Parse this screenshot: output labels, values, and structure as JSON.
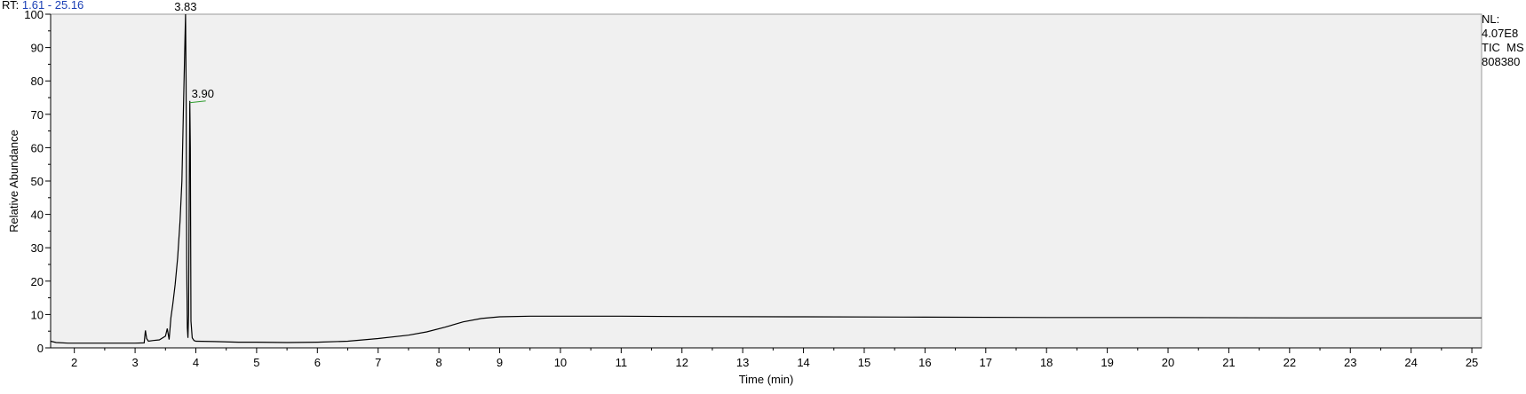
{
  "header": {
    "rt_label": "RT:",
    "rt_range": "1.61 - 25.16"
  },
  "info": {
    "nl_label": "NL:",
    "nl_value": "4.07E8",
    "scan_label": "TIC  MS",
    "file_id": "808380"
  },
  "colors": {
    "plot_background": "#f0f0f0",
    "trace": "#000000",
    "label_connector": "#2e9c2e",
    "rt_range_text": "#1a3fb5"
  },
  "chart_data": {
    "type": "line",
    "xlabel": "Time (min)",
    "ylabel": "Relative Abundance",
    "xlim": [
      1.61,
      25.16
    ],
    "ylim": [
      0,
      100
    ],
    "x_ticks": [
      2,
      3,
      4,
      5,
      6,
      7,
      8,
      9,
      10,
      11,
      12,
      13,
      14,
      15,
      16,
      17,
      18,
      19,
      20,
      21,
      22,
      23,
      24,
      25
    ],
    "y_ticks": [
      0,
      10,
      20,
      30,
      40,
      50,
      60,
      70,
      80,
      90,
      100
    ],
    "grid": false,
    "annotations": [
      {
        "x": 3.83,
        "y": 100,
        "text": "3.83"
      },
      {
        "x": 3.9,
        "y": 74,
        "text": "3.90"
      }
    ],
    "series": [
      {
        "x": [
          1.61,
          1.7,
          1.9,
          2.2,
          2.6,
          3.0,
          3.15,
          3.17,
          3.19,
          3.22,
          3.3,
          3.4,
          3.5,
          3.53,
          3.56,
          3.59,
          3.62,
          3.66,
          3.7,
          3.74,
          3.77,
          3.8,
          3.82,
          3.83,
          3.84,
          3.85,
          3.86,
          3.87,
          3.88,
          3.89,
          3.9,
          3.91,
          3.92,
          3.94,
          3.97,
          4.0,
          4.3,
          4.7,
          5.0,
          5.5,
          6.0,
          6.5,
          7.0,
          7.5,
          7.8,
          8.1,
          8.4,
          8.7,
          9.0,
          9.5,
          10.0,
          11.0,
          12.0,
          14.0,
          16.0,
          18.0,
          20.0,
          22.0,
          24.0,
          25.16
        ],
        "y": [
          2.0,
          1.6,
          1.4,
          1.4,
          1.4,
          1.4,
          1.5,
          5.2,
          2.8,
          2.0,
          2.2,
          2.4,
          3.5,
          5.8,
          2.5,
          9.0,
          13.0,
          19.0,
          27.0,
          38.0,
          50.0,
          75.0,
          92.0,
          100.0,
          80.0,
          25.0,
          6.0,
          3.0,
          10.0,
          45.0,
          74.0,
          60.0,
          8.0,
          3.0,
          2.2,
          2.0,
          1.9,
          1.7,
          1.7,
          1.6,
          1.7,
          2.0,
          2.8,
          3.8,
          4.8,
          6.2,
          7.8,
          8.8,
          9.3,
          9.5,
          9.5,
          9.5,
          9.4,
          9.3,
          9.2,
          9.1,
          9.1,
          9.0,
          9.0,
          9.0
        ]
      }
    ]
  }
}
